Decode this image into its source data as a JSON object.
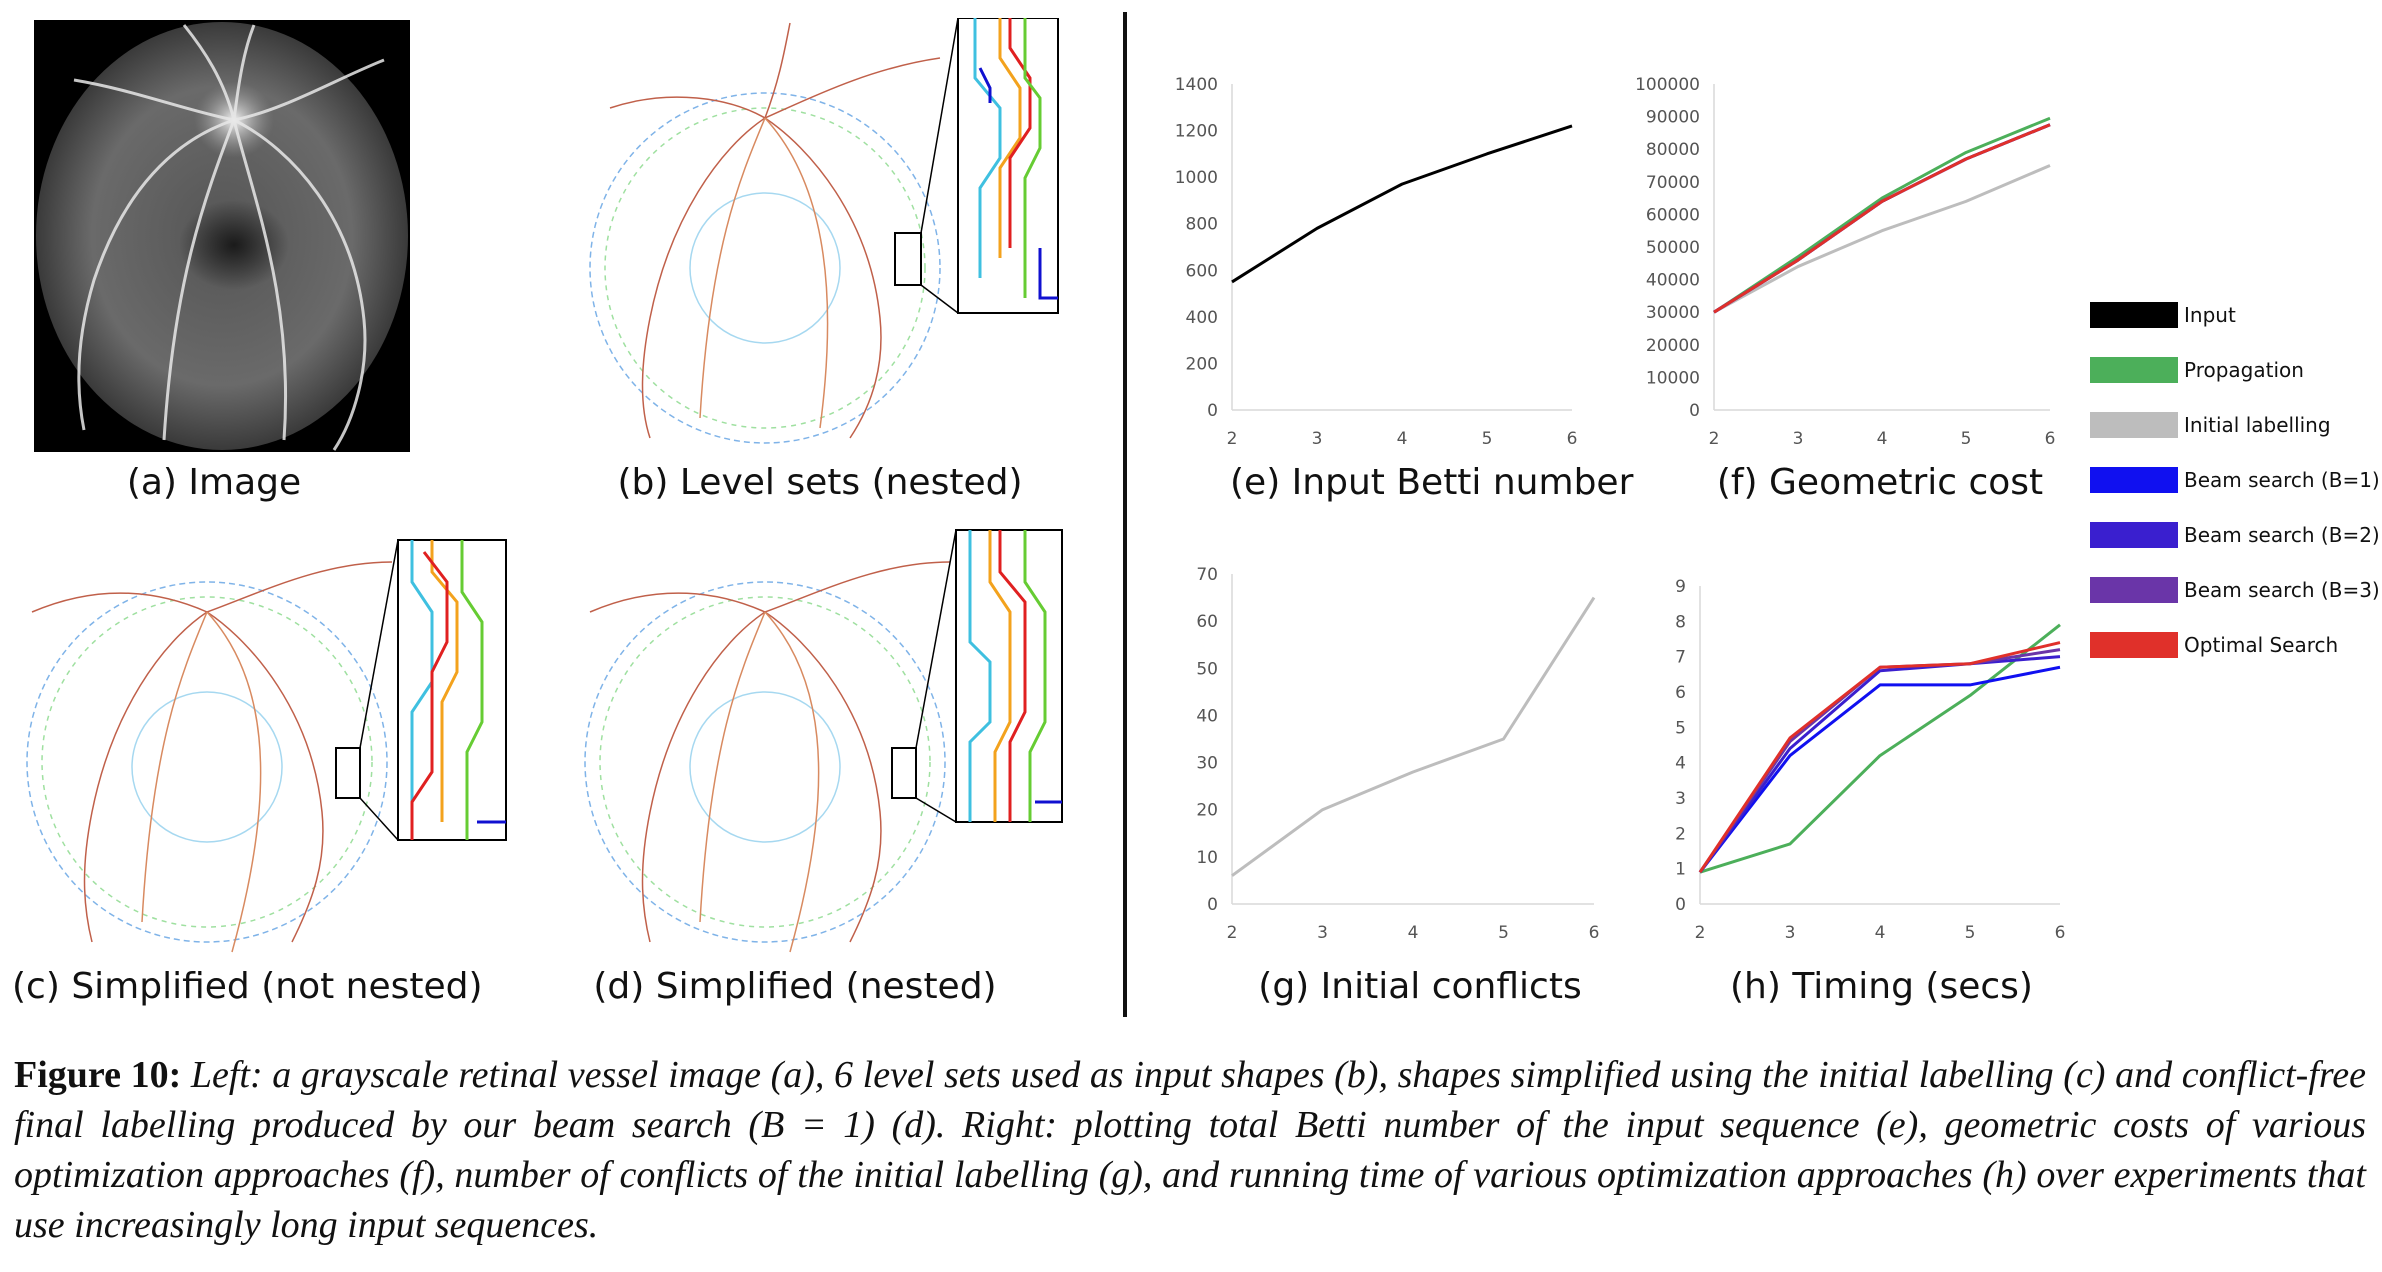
{
  "subcaptions": {
    "a": "(a) Image",
    "b": "(b) Level sets (nested)",
    "c": "(c) Simplified (not nested)",
    "d": "(d) Simplified (nested)",
    "e": "(e) Input Betti number",
    "f": "(f) Geometric cost",
    "g": "(g) Initial conflicts",
    "h": "(h) Timing (secs)"
  },
  "figure_caption": {
    "label": "Figure 10:",
    "text": "Left: a grayscale retinal vessel image (a), 6 level sets used as input shapes (b), shapes simplified using the initial labelling (c) and conflict-free final labelling produced by our beam search (B = 1) (d). Right: plotting total Betti number of the input sequence (e), geometric costs of various optimization approaches (f), number of conflicts of the initial labelling (g), and running time of various optimization approaches (h) over experiments that use increasingly long input sequences."
  },
  "legend": [
    {
      "label": "Input",
      "color": "#000000"
    },
    {
      "label": "Propagation",
      "color": "#4caf5a"
    },
    {
      "label": "Initial labelling",
      "color": "#bdbdbd"
    },
    {
      "label": "Beam search (B=1)",
      "color": "#1010f0"
    },
    {
      "label": "Beam search (B=2)",
      "color": "#3a1fcf"
    },
    {
      "label": "Beam search (B=3)",
      "color": "#6a35a8"
    },
    {
      "label": "Optimal Search",
      "color": "#e0302a"
    }
  ],
  "chart_data": [
    {
      "id": "e",
      "type": "line",
      "x": [
        2,
        3,
        4,
        5,
        6
      ],
      "ylim": [
        0,
        1400
      ],
      "yticks": [
        0,
        200,
        400,
        600,
        800,
        1000,
        1200,
        1400
      ],
      "series": [
        {
          "name": "Input",
          "color": "#000000",
          "values": [
            550,
            780,
            970,
            1100,
            1220
          ]
        }
      ]
    },
    {
      "id": "f",
      "type": "line",
      "x": [
        2,
        3,
        4,
        5,
        6
      ],
      "ylim": [
        0,
        100000
      ],
      "yticks": [
        0,
        10000,
        20000,
        30000,
        40000,
        50000,
        60000,
        70000,
        80000,
        90000,
        100000
      ],
      "series": [
        {
          "name": "Initial labelling",
          "color": "#bdbdbd",
          "values": [
            30000,
            44000,
            55000,
            64000,
            75000
          ]
        },
        {
          "name": "Propagation",
          "color": "#4caf5a",
          "values": [
            30000,
            47000,
            65000,
            79000,
            89500
          ]
        },
        {
          "name": "Beam search (B=1)",
          "color": "#1010f0",
          "values": [
            30000,
            46000,
            64000,
            77000,
            87500
          ]
        },
        {
          "name": "Beam search (B=2)",
          "color": "#3a1fcf",
          "values": [
            30000,
            46000,
            64000,
            77000,
            87500
          ]
        },
        {
          "name": "Beam search (B=3)",
          "color": "#6a35a8",
          "values": [
            30000,
            46000,
            64000,
            77000,
            87500
          ]
        },
        {
          "name": "Optimal Search",
          "color": "#e0302a",
          "values": [
            30000,
            46000,
            64000,
            77000,
            87500
          ]
        }
      ]
    },
    {
      "id": "g",
      "type": "line",
      "x": [
        2,
        3,
        4,
        5,
        6
      ],
      "ylim": [
        0,
        70
      ],
      "yticks": [
        0,
        10,
        20,
        30,
        40,
        50,
        60,
        70
      ],
      "series": [
        {
          "name": "Initial labelling",
          "color": "#bdbdbd",
          "values": [
            6,
            20,
            28,
            35,
            65
          ]
        }
      ]
    },
    {
      "id": "h",
      "type": "line",
      "x": [
        2,
        3,
        4,
        5,
        6
      ],
      "ylim": [
        0,
        9
      ],
      "yticks": [
        0,
        1,
        2,
        3,
        4,
        5,
        6,
        7,
        8,
        9
      ],
      "series": [
        {
          "name": "Propagation",
          "color": "#4caf5a",
          "values": [
            0.9,
            1.7,
            4.2,
            5.9,
            7.9
          ]
        },
        {
          "name": "Beam search (B=1)",
          "color": "#1010f0",
          "values": [
            0.9,
            4.2,
            6.2,
            6.2,
            6.7
          ]
        },
        {
          "name": "Beam search (B=2)",
          "color": "#3a1fcf",
          "values": [
            0.9,
            4.4,
            6.6,
            6.8,
            7.0
          ]
        },
        {
          "name": "Beam search (B=3)",
          "color": "#6a35a8",
          "values": [
            0.9,
            4.6,
            6.7,
            6.8,
            7.2
          ]
        },
        {
          "name": "Optimal Search",
          "color": "#e0302a",
          "values": [
            0.9,
            4.7,
            6.7,
            6.8,
            7.4
          ]
        }
      ]
    }
  ]
}
